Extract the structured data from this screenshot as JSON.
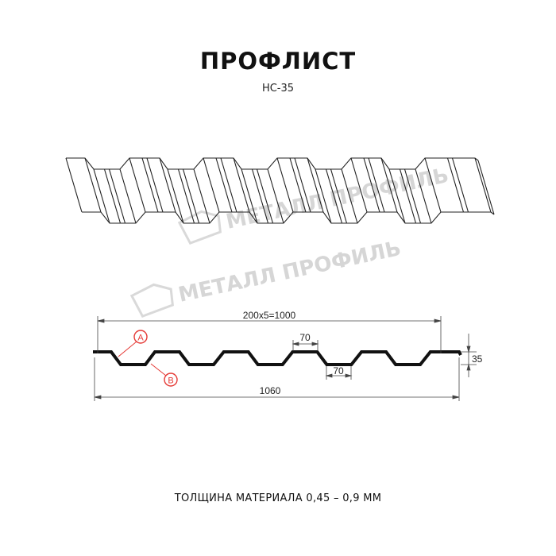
{
  "header": {
    "title": "ПРОФЛИСТ",
    "subtitle": "НС-35"
  },
  "watermark": {
    "text": "МЕТАЛЛ ПРОФИЛЬ",
    "color": "#d6d6d6"
  },
  "drawing": {
    "dim_step": "200x5=1000",
    "dim_top_flat": "70",
    "dim_bottom_flat": "70",
    "dim_height": "35",
    "dim_total": "1060",
    "label_a": "A",
    "label_b": "B",
    "accent_color": "#e53935"
  },
  "footer": {
    "thickness": "ТОЛЩИНА МАТЕРИАЛА 0,45 – 0,9 ММ"
  }
}
